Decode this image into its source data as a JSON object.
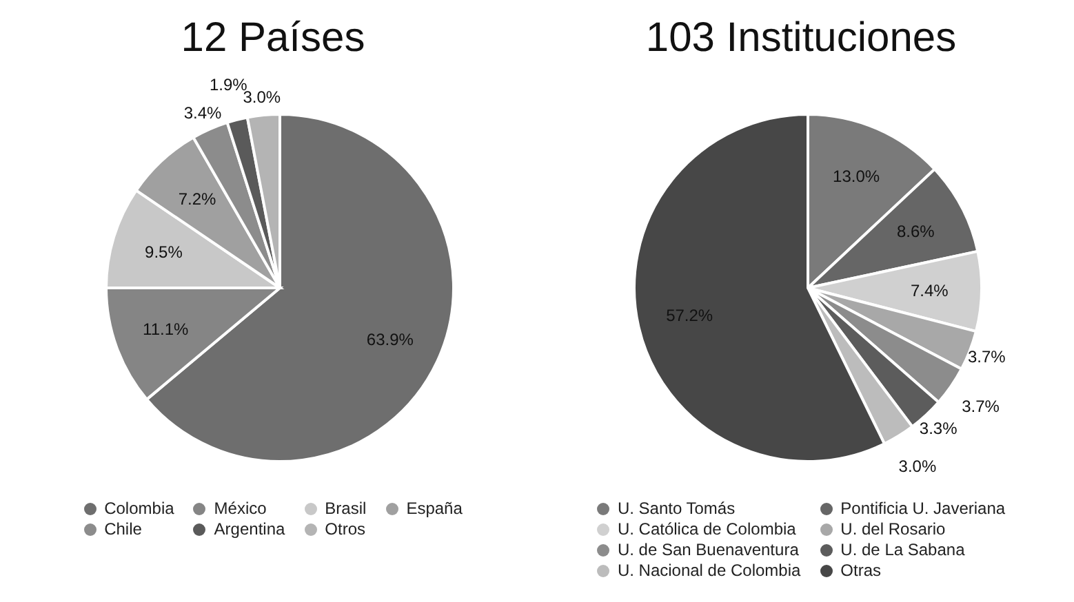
{
  "chart_data": [
    {
      "type": "pie",
      "title": "12 Países",
      "legend": "bottom",
      "categories": [
        "Colombia",
        "México",
        "Brasil",
        "España",
        "Chile",
        "Argentina",
        "Otros"
      ],
      "values": [
        63.9,
        11.1,
        9.5,
        7.2,
        3.4,
        1.9,
        3.0
      ],
      "value_labels": [
        "63.9%",
        "11.1%",
        "9.5%",
        "7.2%",
        "3.4%",
        "1.9%",
        "3.0%"
      ],
      "colors": [
        "#6e6e6e",
        "#858585",
        "#c8c8c8",
        "#a0a0a0",
        "#8c8c8c",
        "#5a5a5a",
        "#b4b4b4"
      ]
    },
    {
      "type": "pie",
      "title": "103 Instituciones",
      "legend": "bottom",
      "categories": [
        "U. Santo Tomás",
        "Pontificia U. Javeriana",
        "U. Católica de Colombia",
        "U. del Rosario",
        "U. de San Buenaventura",
        "U. de La Sabana",
        "U. Nacional de Colombia",
        "Otras"
      ],
      "values": [
        13.0,
        8.6,
        7.4,
        3.7,
        3.7,
        3.3,
        3.0,
        57.2
      ],
      "value_labels": [
        "13.0%",
        "8.6%",
        "7.4%",
        "3.7%",
        "3.7%",
        "3.3%",
        "3.0%",
        "57.2%"
      ],
      "colors": [
        "#7a7a7a",
        "#666666",
        "#d0d0d0",
        "#a8a8a8",
        "#8c8c8c",
        "#5c5c5c",
        "#bcbcbc",
        "#474747"
      ]
    }
  ]
}
